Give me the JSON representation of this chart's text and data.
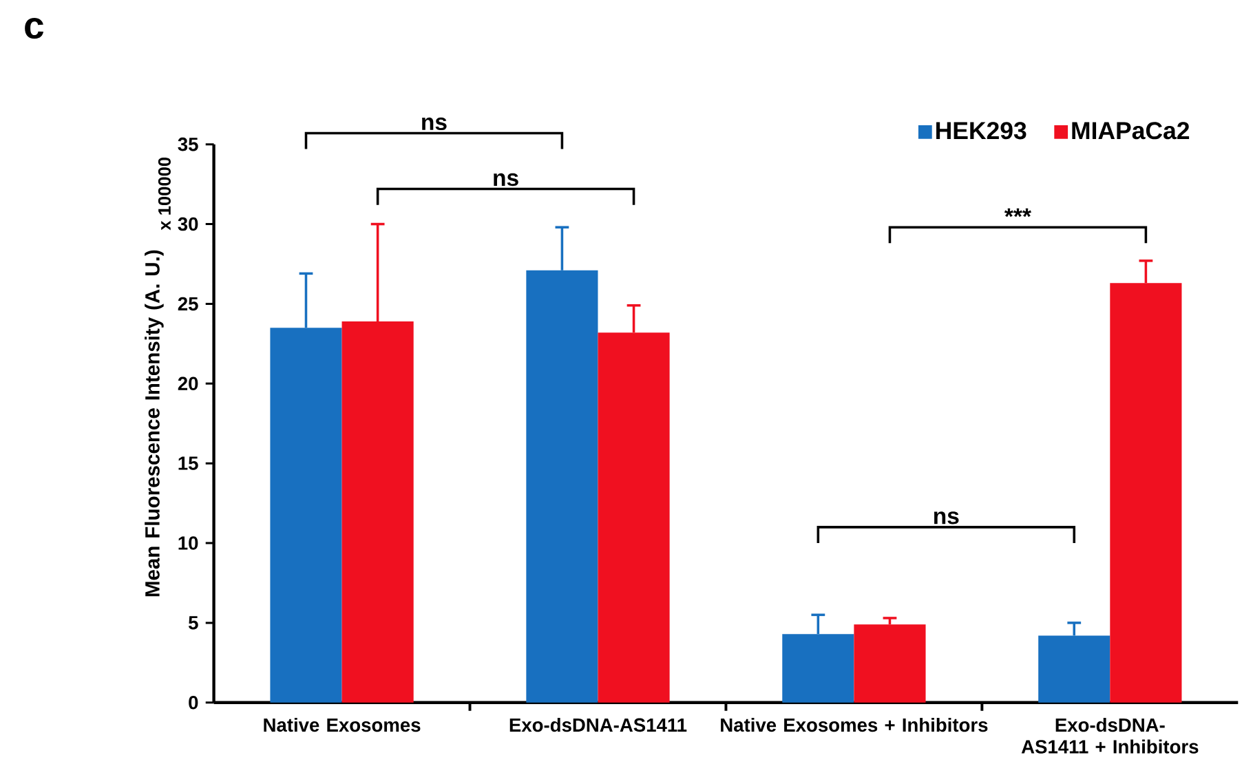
{
  "chart_data": {
    "type": "bar",
    "title": "c",
    "categories": [
      "Native Exosomes",
      "Exo-dsDNA-AS1411",
      "Native Exosomes + Inhibitors",
      "Exo-dsDNA-AS1411 + Inhibitors"
    ],
    "series": [
      {
        "name": "HEK293",
        "color": "#1870c0",
        "values": [
          23.5,
          27.1,
          4.3,
          4.2
        ],
        "errors": [
          [
            23.5,
            26.9
          ],
          [
            27.1,
            29.8
          ],
          [
            4.3,
            5.5
          ],
          [
            4.2,
            5.0
          ]
        ]
      },
      {
        "name": "MIAPaCa2",
        "color": "#f01020",
        "values": [
          23.9,
          23.2,
          4.9,
          26.3
        ],
        "errors": [
          [
            23.9,
            30.0
          ],
          [
            23.2,
            24.9
          ],
          [
            4.9,
            5.3
          ],
          [
            26.3,
            27.7
          ]
        ]
      }
    ],
    "ylabel": "Mean Fluorescence Intensity (A. U.)",
    "ylim": [
      0,
      35
    ],
    "yticks": [
      0,
      5,
      10,
      15,
      20,
      25,
      30,
      35
    ],
    "annotations": [
      "x 100000",
      "ns",
      "ns",
      "ns",
      "***"
    ],
    "legend": "top right",
    "grid": false
  }
}
